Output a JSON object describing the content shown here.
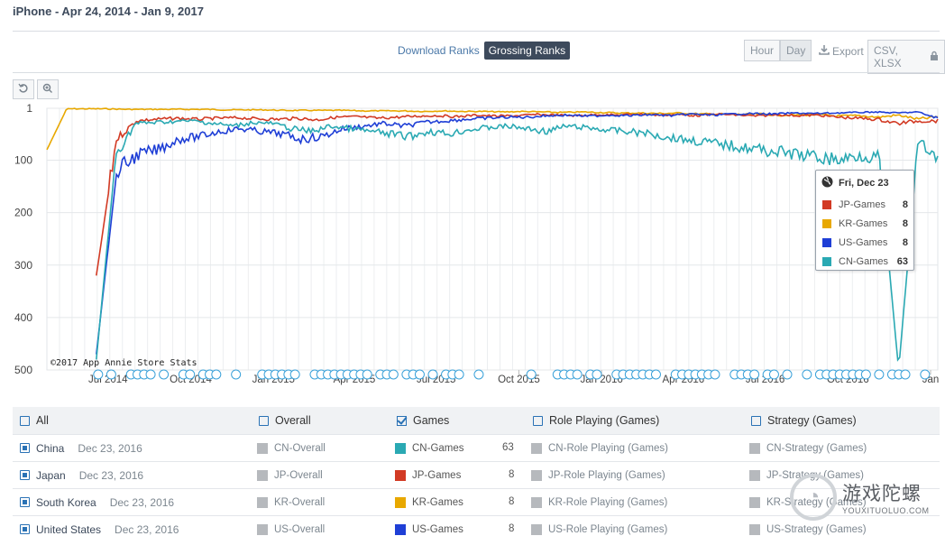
{
  "page": {
    "title": "iPhone - Apr 24, 2014 - Jan 9, 2017"
  },
  "toolbar": {
    "download_ranks": "Download Ranks",
    "grossing_ranks": "Grossing Ranks",
    "hour": "Hour",
    "day": "Day",
    "export": "Export",
    "csv_xlsx": "CSV, XLSX"
  },
  "icons": {
    "reset": "reset-zoom-icon",
    "zoom": "zoom-icon",
    "download": "download-icon",
    "lock": "lock-icon",
    "globe": "globe-icon"
  },
  "chart_data": {
    "type": "line",
    "copyright": "©2017 App Annie Store Stats",
    "y_axis": {
      "reversed": true,
      "ylim": [
        1,
        500
      ],
      "ticks": [
        "1",
        "100",
        "200",
        "300",
        "400",
        "500"
      ]
    },
    "x_axis": {
      "start": "2014-04-24",
      "end": "2017-01-09",
      "tick_labels": [
        "Jul 2014",
        "Oct 2014",
        "Jan 2015",
        "Apr 2015",
        "Jul 2015",
        "Oct 2015",
        "Jan 2016",
        "Apr 2016",
        "Jul 2016",
        "Oct 2016",
        "Jan"
      ]
    },
    "grid": true,
    "series": [
      {
        "name": "KR-Games",
        "color": "#e8a800",
        "start": "2014-04-24",
        "values": [
          80,
          2,
          2,
          2,
          3,
          3,
          3,
          3,
          3,
          4,
          4,
          4,
          5,
          5,
          5,
          5,
          6,
          6,
          6,
          7,
          6,
          7,
          7,
          8,
          7,
          8,
          9,
          8,
          9,
          10,
          10,
          11,
          10,
          12,
          12,
          13,
          12,
          14,
          14,
          13,
          16,
          15,
          18,
          14,
          22,
          17
        ]
      },
      {
        "name": "JP-Games",
        "color": "#d23a24",
        "start": "2014-06-18",
        "values": [
          320,
          60,
          25,
          22,
          20,
          22,
          20,
          19,
          21,
          22,
          20,
          23,
          18,
          17,
          20,
          18,
          16,
          15,
          17,
          14,
          16,
          15,
          13,
          14,
          15,
          13,
          14,
          12,
          14,
          13,
          15,
          12,
          14,
          16,
          13,
          15,
          14,
          18,
          20,
          22,
          30,
          25,
          25
        ]
      },
      {
        "name": "US-Games",
        "color": "#1f3fd6",
        "start": "2014-06-18",
        "values": [
          470,
          120,
          90,
          80,
          60,
          55,
          45,
          40,
          45,
          50,
          60,
          55,
          40,
          35,
          30,
          35,
          28,
          25,
          22,
          20,
          18,
          18,
          15,
          14,
          16,
          14,
          15,
          13,
          15,
          12,
          14,
          12,
          11,
          12,
          10,
          11,
          10,
          9,
          8,
          10,
          8,
          20
        ]
      },
      {
        "name": "CN-Games",
        "color": "#2aa9b3",
        "start": "2014-06-18",
        "values": [
          480,
          90,
          30,
          28,
          26,
          25,
          30,
          35,
          28,
          30,
          40,
          45,
          35,
          40,
          45,
          50,
          55,
          45,
          50,
          42,
          38,
          35,
          40,
          45,
          35,
          38,
          42,
          45,
          48,
          55,
          60,
          65,
          70,
          75,
          80,
          85,
          90,
          95,
          100,
          90,
          95,
          500,
          63,
          100
        ]
      }
    ]
  },
  "tooltip": {
    "date": "Fri, Dec 23",
    "rows": [
      {
        "name": "JP-Games",
        "value": "8",
        "color": "#d23a24"
      },
      {
        "name": "KR-Games",
        "value": "8",
        "color": "#e8a800"
      },
      {
        "name": "US-Games",
        "value": "8",
        "color": "#1f3fd6"
      },
      {
        "name": "CN-Games",
        "value": "63",
        "color": "#2aa9b3"
      }
    ]
  },
  "legend": {
    "header": {
      "all": "All",
      "overall": "Overall",
      "games": "Games",
      "role_playing": "Role Playing (Games)",
      "strategy": "Strategy (Games)"
    },
    "rows": [
      {
        "country": "China",
        "date": "Dec 23, 2016",
        "overall": "CN-Overall",
        "games": "CN-Games",
        "games_rank": "63",
        "games_color": "#2aa9b3",
        "role_playing": "CN-Role Playing (Games)",
        "strategy": "CN-Strategy (Games)"
      },
      {
        "country": "Japan",
        "date": "Dec 23, 2016",
        "overall": "JP-Overall",
        "games": "JP-Games",
        "games_rank": "8",
        "games_color": "#d23a24",
        "role_playing": "JP-Role Playing (Games)",
        "strategy": "JP-Strategy (Games)"
      },
      {
        "country": "South Korea",
        "date": "Dec 23, 2016",
        "overall": "KR-Overall",
        "games": "KR-Games",
        "games_rank": "8",
        "games_color": "#e8a800",
        "role_playing": "KR-Role Playing (Games)",
        "strategy": "KR-Strategy (Games)"
      },
      {
        "country": "United States",
        "date": "Dec 23, 2016",
        "overall": "US-Overall",
        "games": "US-Games",
        "games_rank": "8",
        "games_color": "#1f3fd6",
        "role_playing": "US-Role Playing (Games)",
        "strategy": "US-Strategy (Games)"
      }
    ]
  },
  "watermark": {
    "cn": "游戏陀螺",
    "en": "YOUXITUOLUO.COM"
  }
}
